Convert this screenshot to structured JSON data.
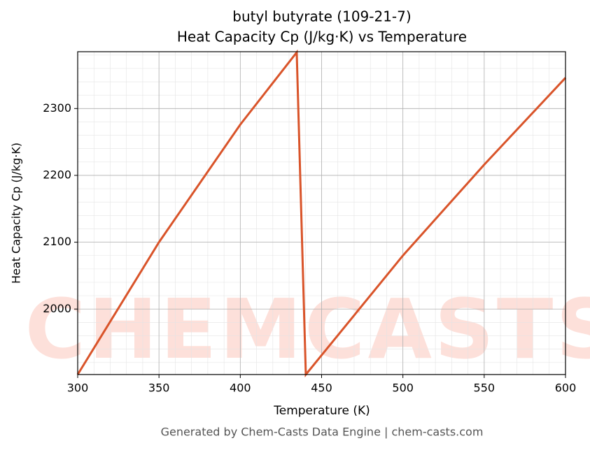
{
  "chart_data": {
    "type": "line",
    "title": "butyl butyrate (109-21-7)",
    "subtitle": "Heat Capacity Cp (J/kg·K) vs Temperature",
    "x_label": "Temperature (K)",
    "y_label": "Heat Capacity Cp (J/kg·K)",
    "footer": "Generated by Chem-Casts Data Engine | chem-casts.com",
    "watermark": "CHEMCASTS",
    "x": [
      300,
      350,
      400,
      434.7,
      440.3,
      500,
      550,
      600
    ],
    "series": [
      {
        "name": "Cp",
        "color": "#d9542a",
        "values": [
          1902,
          2100,
          2276,
          2384,
          1902,
          2080,
          2216,
          2346
        ]
      }
    ],
    "xlim": [
      300,
      600
    ],
    "ylim": [
      1902,
      2385
    ],
    "xticks": [
      300,
      350,
      400,
      450,
      500,
      550,
      600
    ],
    "yticks": [
      2000,
      2100,
      2200,
      2300
    ],
    "grid": true
  }
}
